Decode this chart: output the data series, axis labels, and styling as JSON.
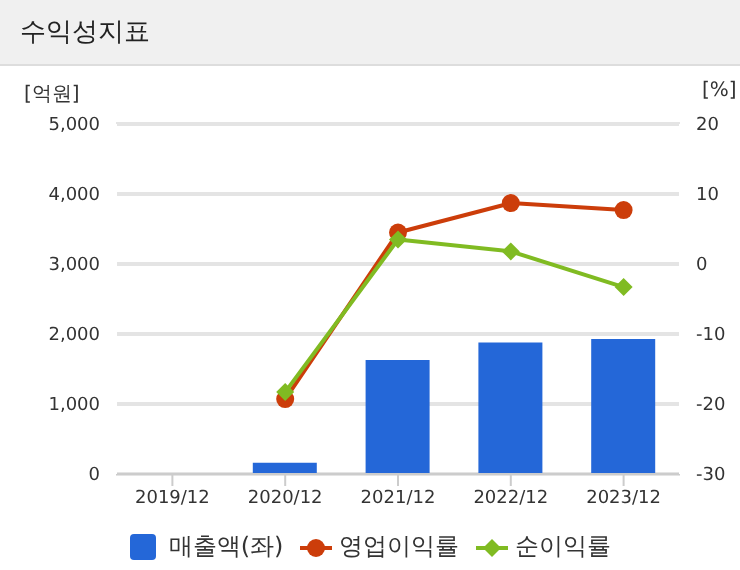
{
  "chart_data": {
    "type": "bar",
    "title": "수익성지표",
    "ylabel": "[억원]",
    "y2label": "[%]",
    "categories": [
      "2019/12",
      "2020/12",
      "2021/12",
      "2022/12",
      "2023/12"
    ],
    "series": [
      {
        "name": "매출액(좌)",
        "color": "#2467d8",
        "values": [
          null,
          160,
          1630,
          1880,
          1930
        ]
      },
      {
        "name": "영업이익률",
        "type": "line",
        "axis": "y2",
        "color": "#cc3d0a",
        "marker": "circle",
        "values": [
          null,
          -19.3,
          4.5,
          8.7,
          7.7
        ]
      },
      {
        "name": "순이익률",
        "type": "line",
        "axis": "y2",
        "color": "#80bb22",
        "marker": "diamond",
        "values": [
          null,
          -18.3,
          3.5,
          1.8,
          -3.3
        ]
      }
    ],
    "ylim": [
      0,
      5000
    ],
    "yticks": [
      0,
      {
        "value": 1000,
        "label": "1,000"
      },
      {
        "value": 2000,
        "label": "2,000"
      },
      {
        "value": 3000,
        "label": "3,000"
      },
      {
        "value": 4000,
        "label": "4,000"
      },
      {
        "value": 5000,
        "label": "5,000"
      }
    ],
    "y2lim": [
      -30,
      20
    ],
    "y2ticks": [
      -30,
      -20,
      -10,
      0,
      10,
      20
    ],
    "grid": "y",
    "legend": "bottom"
  }
}
